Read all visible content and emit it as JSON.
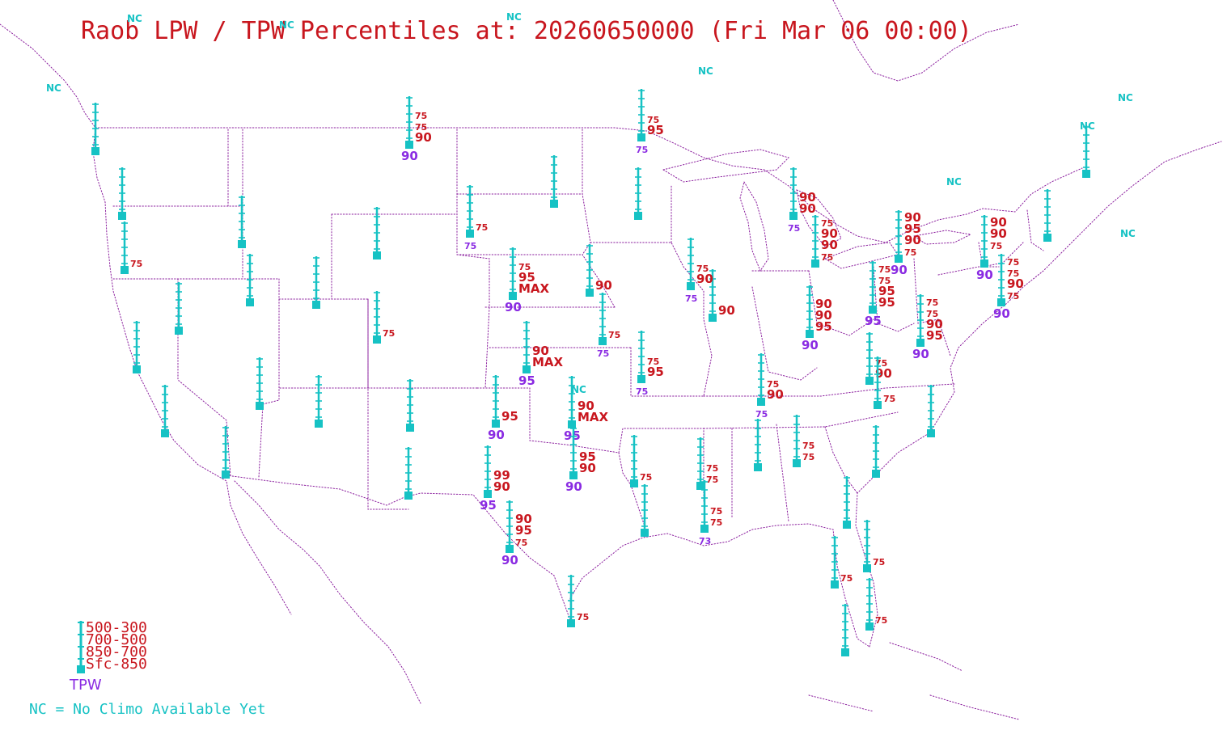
{
  "title": "Raob LPW / TPW Percentiles at: 20260650000 (Fri Mar 06 00:00)",
  "colors": {
    "layer_text": "#c8161e",
    "tpw_text": "#8a2be2",
    "station_marker": "#16c2c4",
    "nc_text": "#16c2c4",
    "boundaries": "#8b1f9e"
  },
  "legend": {
    "layers": [
      "500-300",
      "700-500",
      "850-700",
      "Sfc-850"
    ],
    "tpw_label": "TPW",
    "nc_note": "NC = No Climo Available Yet"
  },
  "nc_label": "NC",
  "nc_count": 10,
  "stations": [
    {
      "id": "s01",
      "lpw": [
        "",
        "",
        "",
        ""
      ],
      "tpw": ""
    },
    {
      "id": "s02",
      "lpw": [
        "",
        "",
        "",
        ""
      ],
      "tpw": ""
    },
    {
      "id": "s03",
      "lpw": [
        "",
        "",
        "",
        "75"
      ],
      "tpw": ""
    },
    {
      "id": "s04",
      "lpw": [
        "",
        "",
        "",
        ""
      ],
      "tpw": ""
    },
    {
      "id": "s05",
      "lpw": [
        "",
        "",
        "",
        ""
      ],
      "tpw": ""
    },
    {
      "id": "s06",
      "lpw": [
        "",
        "",
        "",
        ""
      ],
      "tpw": ""
    },
    {
      "id": "s07",
      "lpw": [
        "",
        "",
        "",
        ""
      ],
      "tpw": ""
    },
    {
      "id": "s08",
      "lpw": [
        "",
        "",
        "",
        ""
      ],
      "tpw": ""
    },
    {
      "id": "s09",
      "lpw": [
        "",
        "",
        "",
        ""
      ],
      "tpw": ""
    },
    {
      "id": "s10",
      "lpw": [
        "",
        "",
        "",
        ""
      ],
      "tpw": ""
    },
    {
      "id": "s11",
      "lpw": [
        "",
        "",
        "",
        ""
      ],
      "tpw": ""
    },
    {
      "id": "s12",
      "lpw": [
        "",
        "",
        "",
        ""
      ],
      "tpw": ""
    },
    {
      "id": "s13",
      "lpw": [
        "",
        "",
        "",
        "75"
      ],
      "tpw": ""
    },
    {
      "id": "s14",
      "lpw": [
        "",
        "",
        "",
        ""
      ],
      "tpw": ""
    },
    {
      "id": "s15",
      "lpw": [
        "",
        "",
        "",
        ""
      ],
      "tpw": ""
    },
    {
      "id": "s16",
      "lpw": [
        "",
        "",
        "",
        ""
      ],
      "tpw": ""
    },
    {
      "id": "s17",
      "lpw": [
        "",
        "75",
        "75",
        "90"
      ],
      "tpw": "90"
    },
    {
      "id": "s18",
      "lpw": [
        "",
        "",
        "",
        "75"
      ],
      "tpw": "75"
    },
    {
      "id": "s19",
      "lpw": [
        "",
        "",
        "",
        ""
      ],
      "tpw": ""
    },
    {
      "id": "s20",
      "lpw": [
        "",
        "",
        "",
        ""
      ],
      "tpw": ""
    },
    {
      "id": "s21",
      "lpw": [
        "",
        "",
        "75",
        "95"
      ],
      "tpw": "75"
    },
    {
      "id": "s22",
      "lpw": [
        "",
        "75",
        "95",
        "MAX"
      ],
      "tpw": "90"
    },
    {
      "id": "s23",
      "lpw": [
        "",
        "",
        "",
        "90"
      ],
      "tpw": ""
    },
    {
      "id": "s24",
      "lpw": [
        "",
        "",
        "90",
        "MAX"
      ],
      "tpw": "95"
    },
    {
      "id": "s25",
      "lpw": [
        "",
        "",
        "",
        "95"
      ],
      "tpw": "90"
    },
    {
      "id": "s26",
      "lpw": [
        "",
        "",
        "99",
        "90"
      ],
      "tpw": "95"
    },
    {
      "id": "s27",
      "lpw": [
        "",
        "90",
        "95",
        "75"
      ],
      "tpw": "90"
    },
    {
      "id": "s28",
      "lpw": [
        "",
        "",
        "",
        "75"
      ],
      "tpw": ""
    },
    {
      "id": "s29",
      "lpw": [
        "",
        "",
        "",
        "75"
      ],
      "tpw": "75"
    },
    {
      "id": "s30",
      "lpw": [
        "",
        "",
        "90",
        "MAX"
      ],
      "tpw": "95"
    },
    {
      "id": "s31",
      "lpw": [
        "",
        "",
        "95",
        "90"
      ],
      "tpw": "90"
    },
    {
      "id": "s32",
      "lpw": [
        "",
        "",
        "75",
        "95"
      ],
      "tpw": "75"
    },
    {
      "id": "s33",
      "lpw": [
        "",
        "",
        "75",
        "95"
      ],
      "tpw": "75"
    },
    {
      "id": "s34",
      "lpw": [
        "",
        "",
        "",
        "90"
      ],
      "tpw": ""
    },
    {
      "id": "s35",
      "lpw": [
        "",
        "",
        "",
        "75"
      ],
      "tpw": ""
    },
    {
      "id": "s36",
      "lpw": [
        "",
        "",
        "",
        ""
      ],
      "tpw": ""
    },
    {
      "id": "s37",
      "lpw": [
        "",
        "",
        "75",
        "75"
      ],
      "tpw": ""
    },
    {
      "id": "s38",
      "lpw": [
        "",
        "",
        "75",
        "75"
      ],
      "tpw": "73"
    },
    {
      "id": "s39",
      "lpw": [
        "",
        "",
        "75",
        "90"
      ],
      "tpw": "75"
    },
    {
      "id": "s40",
      "lpw": [
        "",
        "",
        "75",
        "90"
      ],
      "tpw": "75"
    },
    {
      "id": "s41",
      "lpw": [
        "",
        "",
        "90",
        "90"
      ],
      "tpw": "75"
    },
    {
      "id": "s42",
      "lpw": [
        "75",
        "90",
        "90",
        "75"
      ],
      "tpw": ""
    },
    {
      "id": "s43",
      "lpw": [
        "",
        "",
        "",
        ""
      ],
      "tpw": ""
    },
    {
      "id": "s44",
      "lpw": [
        "",
        "",
        "75",
        "75"
      ],
      "tpw": ""
    },
    {
      "id": "s45",
      "lpw": [
        "",
        "90",
        "90",
        "95"
      ],
      "tpw": "90"
    },
    {
      "id": "s46",
      "lpw": [
        "",
        "",
        "75",
        "90"
      ],
      "tpw": ""
    },
    {
      "id": "s47",
      "lpw": [
        "",
        "",
        "75",
        "90"
      ],
      "tpw": "90"
    },
    {
      "id": "s48",
      "lpw": [
        "",
        "",
        "",
        "75"
      ],
      "tpw": ""
    },
    {
      "id": "s49",
      "lpw": [
        "",
        "",
        "",
        ""
      ],
      "tpw": ""
    },
    {
      "id": "s50",
      "lpw": [
        "",
        "",
        "",
        ""
      ],
      "tpw": ""
    },
    {
      "id": "s51",
      "lpw": [
        "",
        "",
        "",
        "75"
      ],
      "tpw": ""
    },
    {
      "id": "s52",
      "lpw": [
        "",
        "",
        "",
        ""
      ],
      "tpw": ""
    },
    {
      "id": "s53",
      "lpw": [
        "",
        "",
        "",
        "75"
      ],
      "tpw": ""
    },
    {
      "id": "s54",
      "lpw": [
        "",
        "",
        "",
        "75"
      ],
      "tpw": ""
    },
    {
      "id": "s55",
      "lpw": [
        "75",
        "75",
        "95",
        "95"
      ],
      "tpw": "95"
    },
    {
      "id": "s56",
      "lpw": [
        "90",
        "95",
        "90",
        "75"
      ],
      "tpw": "90"
    },
    {
      "id": "s57",
      "lpw": [
        "75",
        "75",
        "90",
        "95"
      ],
      "tpw": "90"
    },
    {
      "id": "s58",
      "lpw": [
        "",
        "",
        "",
        ""
      ],
      "tpw": ""
    },
    {
      "id": "s59",
      "lpw": [
        "",
        "",
        "",
        ""
      ],
      "tpw": ""
    },
    {
      "id": "s60",
      "lpw": [
        "90",
        "90",
        "75",
        ""
      ],
      "tpw": "90"
    },
    {
      "id": "s61",
      "lpw": [
        "75",
        "75",
        "90",
        "75"
      ],
      "tpw": "90"
    },
    {
      "id": "s62",
      "lpw": [
        "",
        "",
        "",
        ""
      ],
      "tpw": ""
    },
    {
      "id": "s63",
      "lpw": [
        "",
        "",
        "",
        ""
      ],
      "tpw": ""
    },
    {
      "id": "s64",
      "lpw": [
        "",
        "",
        "",
        ""
      ],
      "tpw": ""
    },
    {
      "id": "s65",
      "lpw": [
        "",
        "",
        "",
        ""
      ],
      "tpw": ""
    }
  ]
}
